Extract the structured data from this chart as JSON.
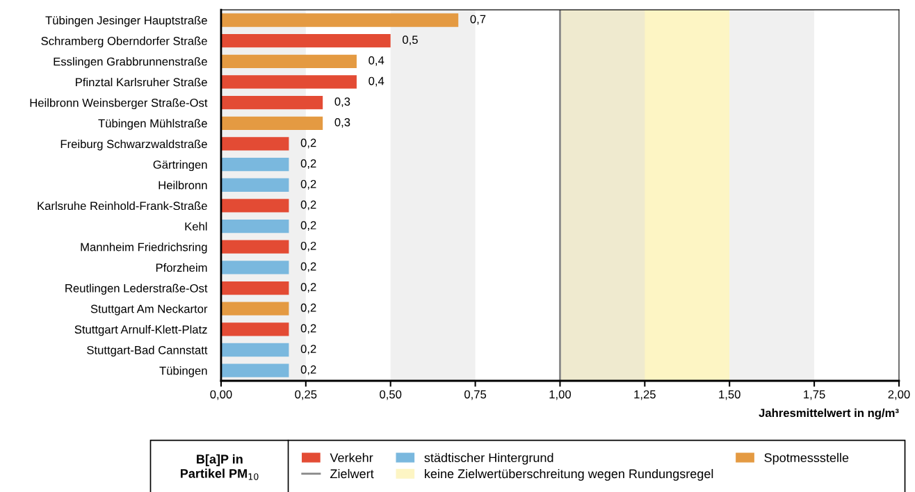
{
  "chart_data": {
    "type": "bar",
    "orientation": "horizontal",
    "categories": [
      "Tübingen Jesinger Hauptstraße",
      "Schramberg Oberndorfer Straße",
      "Esslingen Grabbrunnenstraße",
      "Pfinztal Karlsruher Straße",
      "Heilbronn Weinsberger Straße-Ost",
      "Tübingen Mühlstraße",
      "Freiburg Schwarzwaldstraße",
      "Gärtringen",
      "Heilbronn",
      "Karlsruhe Reinhold-Frank-Straße",
      "Kehl",
      "Mannheim Friedrichsring",
      "Pforzheim",
      "Reutlingen Lederstraße-Ost",
      "Stuttgart Am Neckartor",
      "Stuttgart Arnulf-Klett-Platz",
      "Stuttgart-Bad Cannstatt",
      "Tübingen"
    ],
    "series": [
      {
        "name": "Verkehr",
        "color": "#e34b34",
        "values": [
          null,
          0.5,
          null,
          0.4,
          0.3,
          null,
          0.2,
          null,
          null,
          0.2,
          null,
          0.2,
          null,
          0.2,
          null,
          0.2,
          null,
          null
        ],
        "value_labels": [
          null,
          "0,5",
          null,
          "0,4",
          "0,3",
          null,
          "0,2",
          null,
          null,
          "0,2",
          null,
          "0,2",
          null,
          "0,2",
          null,
          "0,2",
          null,
          null
        ]
      },
      {
        "name": "städtischer Hintergrund",
        "color": "#7ab8de",
        "values": [
          null,
          null,
          null,
          null,
          null,
          null,
          null,
          0.2,
          0.2,
          null,
          0.2,
          null,
          0.2,
          null,
          null,
          null,
          0.2,
          0.2
        ],
        "value_labels": [
          null,
          null,
          null,
          null,
          null,
          null,
          null,
          "0,2",
          "0,2",
          null,
          "0,2",
          null,
          "0,2",
          null,
          null,
          null,
          "0,2",
          "0,2"
        ]
      },
      {
        "name": "Spotmessstelle",
        "color": "#e49a42",
        "values": [
          0.7,
          null,
          0.4,
          null,
          null,
          0.3,
          null,
          null,
          null,
          null,
          null,
          null,
          null,
          null,
          0.2,
          null,
          null,
          null
        ],
        "value_labels": [
          "0,7",
          null,
          "0,4",
          null,
          null,
          "0,3",
          null,
          null,
          null,
          null,
          null,
          null,
          null,
          null,
          "0,2",
          null,
          null,
          null
        ]
      }
    ],
    "xlabel": "Jahresmittelwert in ng/m³",
    "xlim": [
      0,
      2
    ],
    "xticks": [
      {
        "value": 0,
        "label": "0,00"
      },
      {
        "value": 0.25,
        "label": "0,25"
      },
      {
        "value": 0.5,
        "label": "0,50"
      },
      {
        "value": 0.75,
        "label": "0,75"
      },
      {
        "value": 1,
        "label": "1,00"
      },
      {
        "value": 1.25,
        "label": "1,25"
      },
      {
        "value": 1.5,
        "label": "1,50"
      },
      {
        "value": 1.75,
        "label": "1,75"
      },
      {
        "value": 2,
        "label": "2,00"
      }
    ],
    "bands": [
      {
        "axis": "x",
        "from": 0,
        "to": 0.25,
        "color": "#dedede"
      },
      {
        "axis": "x",
        "from": 0.5,
        "to": 0.75,
        "color": "#dedede"
      },
      {
        "axis": "x",
        "from": 1,
        "to": 1.25,
        "color": "#dedede"
      },
      {
        "axis": "x",
        "from": 1.5,
        "to": 1.75,
        "color": "#dedede"
      },
      {
        "axis": "x",
        "from": 1,
        "to": 1.5,
        "color": "#fdf5c4",
        "label": "keine Zielwertüberschreitung wegen Rundungsregel"
      }
    ],
    "ref_lines": [
      {
        "axis": "x",
        "value": 1,
        "label": "Zielwert",
        "color": "#888888",
        "line_style": "solid"
      }
    ],
    "legend": "bottom",
    "legend_title": "B[a]P in\nPartikel PM$_{10}$",
    "grid": false
  }
}
